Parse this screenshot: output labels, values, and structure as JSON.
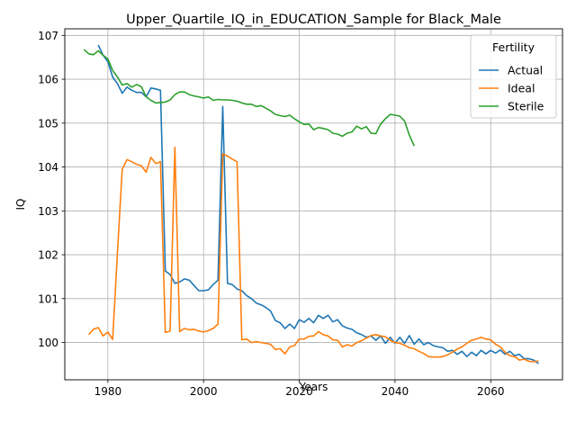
{
  "chart_data": {
    "type": "line",
    "title": "Upper_Quartile_IQ_in_EDUCATION_Sample for Black_Male",
    "xlabel": "Years",
    "ylabel": "IQ",
    "xlim": [
      1971,
      2075
    ],
    "ylim": [
      99.15,
      107.15
    ],
    "xticks": [
      1980,
      2000,
      2020,
      2040,
      2060
    ],
    "yticks": [
      100,
      101,
      102,
      103,
      104,
      105,
      106,
      107
    ],
    "grid": true,
    "legend": {
      "title": "Fertility",
      "placement": "top-right",
      "entries": [
        "Actual",
        "Ideal",
        "Sterile"
      ]
    },
    "series": [
      {
        "name": "Actual",
        "color": "#1f77b4",
        "x": [
          1978,
          1979,
          1980,
          1981,
          1982,
          1983,
          1984,
          1985,
          1986,
          1987,
          1988,
          1989,
          1990,
          1991,
          1992,
          1993,
          1994,
          1995,
          1996,
          1997,
          1998,
          1999,
          2000,
          2001,
          2002,
          2003,
          2004,
          2005,
          2006,
          2007,
          2008,
          2009,
          2010,
          2011,
          2012,
          2013,
          2014,
          2015,
          2016,
          2017,
          2018,
          2019,
          2020,
          2021,
          2022,
          2023,
          2024,
          2025,
          2026,
          2027,
          2028,
          2029,
          2030,
          2031,
          2032,
          2033,
          2034,
          2035,
          2036,
          2037,
          2038,
          2039,
          2040,
          2041,
          2042,
          2043,
          2044,
          2045,
          2046,
          2047,
          2048,
          2049,
          2050,
          2051,
          2052,
          2053,
          2054,
          2055,
          2056,
          2057,
          2058,
          2059,
          2060,
          2061,
          2062,
          2063,
          2064,
          2065,
          2066,
          2067,
          2068,
          2069,
          2070
        ],
        "y": [
          106.78,
          106.55,
          106.4,
          106.05,
          105.9,
          105.68,
          105.82,
          105.75,
          105.7,
          105.7,
          105.6,
          105.8,
          105.78,
          105.75,
          101.63,
          101.55,
          101.35,
          101.38,
          101.45,
          101.42,
          101.3,
          101.18,
          101.18,
          101.2,
          101.32,
          101.42,
          105.38,
          101.35,
          101.32,
          101.22,
          101.18,
          101.07,
          101.0,
          100.9,
          100.86,
          100.8,
          100.72,
          100.5,
          100.45,
          100.32,
          100.42,
          100.32,
          100.52,
          100.46,
          100.55,
          100.45,
          100.62,
          100.55,
          100.62,
          100.47,
          100.52,
          100.38,
          100.33,
          100.3,
          100.22,
          100.18,
          100.12,
          100.15,
          100.05,
          100.15,
          99.98,
          100.12,
          99.98,
          100.12,
          99.98,
          100.16,
          99.96,
          100.08,
          99.95,
          100.0,
          99.93,
          99.9,
          99.88,
          99.8,
          99.82,
          99.73,
          99.8,
          99.68,
          99.78,
          99.7,
          99.82,
          99.74,
          99.82,
          99.76,
          99.83,
          99.73,
          99.8,
          99.7,
          99.73,
          99.63,
          99.63,
          99.6,
          99.52
        ]
      },
      {
        "name": "Ideal",
        "color": "#ff7f0e",
        "x": [
          1976,
          1977,
          1978,
          1979,
          1980,
          1981,
          1982,
          1983,
          1984,
          1985,
          1986,
          1987,
          1988,
          1989,
          1990,
          1991,
          1992,
          1993,
          1994,
          1995,
          1996,
          1997,
          1998,
          1999,
          2000,
          2001,
          2002,
          2003,
          2004,
          2005,
          2006,
          2007,
          2008,
          2009,
          2010,
          2011,
          2012,
          2013,
          2014,
          2015,
          2016,
          2017,
          2018,
          2019,
          2020,
          2021,
          2022,
          2023,
          2024,
          2025,
          2026,
          2027,
          2028,
          2029,
          2030,
          2031,
          2032,
          2033,
          2034,
          2035,
          2036,
          2037,
          2038,
          2039,
          2040,
          2041,
          2042,
          2043,
          2044,
          2045,
          2046,
          2047,
          2048,
          2049,
          2050,
          2051,
          2052,
          2053,
          2054,
          2055,
          2056,
          2057,
          2058,
          2059,
          2060,
          2061,
          2062,
          2063,
          2064,
          2065,
          2066,
          2067,
          2068,
          2069,
          2070
        ],
        "y": [
          100.18,
          100.3,
          100.34,
          100.15,
          100.24,
          100.07,
          102.05,
          103.95,
          104.17,
          104.12,
          104.06,
          104.03,
          103.88,
          104.22,
          104.08,
          104.12,
          100.23,
          100.26,
          104.45,
          100.25,
          100.32,
          100.29,
          100.3,
          100.26,
          100.24,
          100.27,
          100.32,
          100.42,
          104.3,
          104.25,
          104.18,
          104.12,
          100.06,
          100.08,
          100.0,
          100.02,
          100.0,
          99.98,
          99.96,
          99.84,
          99.86,
          99.74,
          99.9,
          99.93,
          100.08,
          100.08,
          100.14,
          100.15,
          100.25,
          100.18,
          100.15,
          100.06,
          100.05,
          99.9,
          99.95,
          99.92,
          100.0,
          100.04,
          100.1,
          100.16,
          100.18,
          100.15,
          100.13,
          100.05,
          100.0,
          99.98,
          99.94,
          99.88,
          99.86,
          99.8,
          99.75,
          99.68,
          99.67,
          99.67,
          99.68,
          99.72,
          99.78,
          99.85,
          99.9,
          99.98,
          100.05,
          100.08,
          100.12,
          100.08,
          100.06,
          99.96,
          99.9,
          99.78,
          99.7,
          99.68,
          99.6,
          99.62,
          99.57,
          99.56,
          99.58
        ]
      },
      {
        "name": "Sterile",
        "color": "#2ca02c",
        "x": [
          1975,
          1976,
          1977,
          1978,
          1979,
          1980,
          1981,
          1982,
          1983,
          1984,
          1985,
          1986,
          1987,
          1988,
          1989,
          1990,
          1991,
          1992,
          1993,
          1994,
          1995,
          1996,
          1997,
          1998,
          1999,
          2000,
          2001,
          2002,
          2003,
          2004,
          2005,
          2006,
          2007,
          2008,
          2009,
          2010,
          2011,
          2012,
          2013,
          2014,
          2015,
          2016,
          2017,
          2018,
          2019,
          2020,
          2021,
          2022,
          2023,
          2024,
          2025,
          2026,
          2027,
          2028,
          2029,
          2030,
          2031,
          2032,
          2033,
          2034,
          2035,
          2036,
          2037,
          2038,
          2039,
          2040,
          2041,
          2042,
          2043,
          2044
        ],
        "y": [
          106.68,
          106.58,
          106.56,
          106.65,
          106.55,
          106.46,
          106.2,
          106.05,
          105.87,
          105.9,
          105.82,
          105.88,
          105.83,
          105.6,
          105.52,
          105.46,
          105.47,
          105.48,
          105.53,
          105.65,
          105.71,
          105.71,
          105.65,
          105.62,
          105.6,
          105.57,
          105.6,
          105.52,
          105.54,
          105.53,
          105.53,
          105.52,
          105.5,
          105.46,
          105.43,
          105.43,
          105.38,
          105.4,
          105.34,
          105.28,
          105.2,
          105.17,
          105.15,
          105.18,
          105.1,
          105.03,
          104.97,
          104.98,
          104.85,
          104.9,
          104.88,
          104.85,
          104.77,
          104.75,
          104.7,
          104.77,
          104.8,
          104.93,
          104.87,
          104.92,
          104.77,
          104.76,
          104.98,
          105.1,
          105.2,
          105.18,
          105.16,
          105.05,
          104.73,
          104.48
        ]
      }
    ]
  }
}
